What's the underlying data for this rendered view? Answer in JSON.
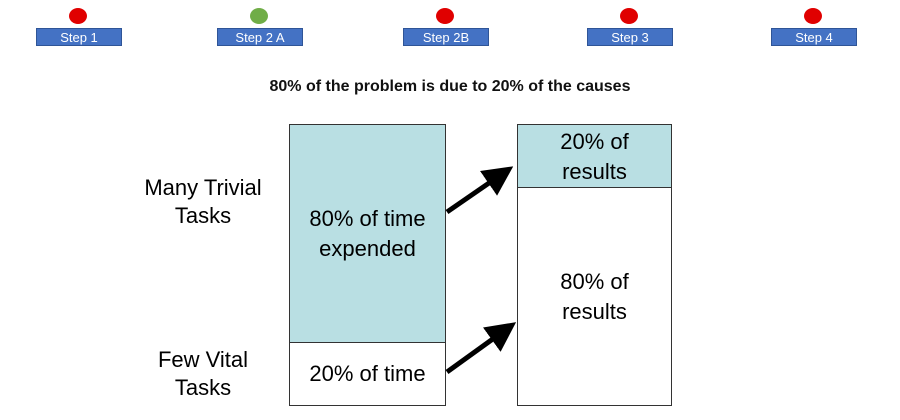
{
  "colors": {
    "step_label_bg": "#4472c4",
    "dot_inactive": "#e00000",
    "dot_active": "#70ad47",
    "box_fill": "#b9dfe3",
    "box_plain": "#ffffff",
    "arrow": "#000000"
  },
  "steps": [
    {
      "label": "Step 1",
      "status": "inactive"
    },
    {
      "label": "Step 2 A",
      "status": "active"
    },
    {
      "label": "Step 2B",
      "status": "inactive"
    },
    {
      "label": "Step 3",
      "status": "inactive"
    },
    {
      "label": "Step 4",
      "status": "inactive"
    }
  ],
  "title": "80% of the problem is due to 20% of the causes",
  "row_labels": {
    "top": "Many Trivial\nTasks",
    "bottom": "Few Vital\nTasks"
  },
  "left_column": {
    "top": {
      "text": "80% of time\nexpended",
      "percent": 80
    },
    "bottom": {
      "text": "20% of time",
      "percent": 20
    }
  },
  "right_column": {
    "top": {
      "text": "20% of\nresults",
      "percent": 20
    },
    "bottom": {
      "text": "80% of\nresults",
      "percent": 80
    }
  }
}
